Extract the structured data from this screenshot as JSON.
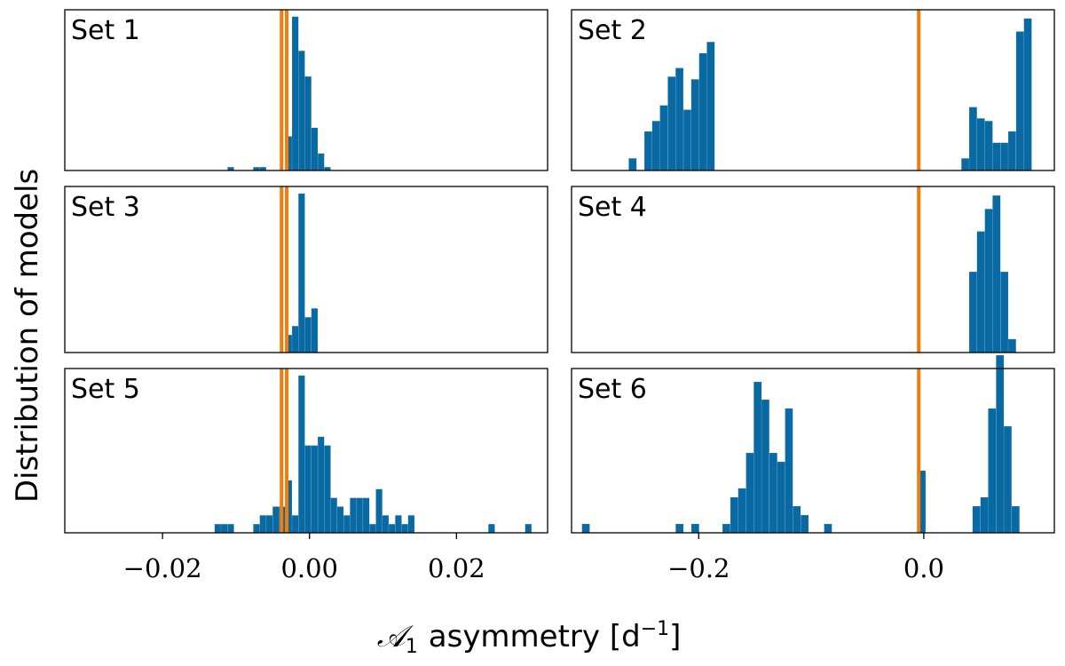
{
  "chart_data": {
    "type": "histogram",
    "ylabel": "Distribution of models",
    "xlabel_math": "𝒜",
    "xlabel_sub": "1",
    "xlabel_text": "asymmetry [d",
    "xlabel_sup": "−1",
    "xlabel_close": "]",
    "columns": [
      {
        "xlim": [
          -0.0333,
          0.0324
        ],
        "ticks": [
          -0.02,
          0.0,
          0.02
        ],
        "tick_labels": [
          "−0.02",
          "0.00",
          "0.02"
        ]
      },
      {
        "xlim": [
          -0.313,
          0.116
        ],
        "ticks": [
          -0.2,
          0.0
        ],
        "tick_labels": [
          "−0.2",
          "0.0"
        ]
      }
    ],
    "panels": [
      {
        "label": "Set 1",
        "column": 0,
        "bin_width": 0.000878,
        "ymax": 18.8,
        "ref_lines": [
          -0.0038,
          -0.0031
        ],
        "bins": [
          {
            "x": -0.01116,
            "h": 0.4
          },
          {
            "x": -0.00765,
            "h": 0.4
          },
          {
            "x": -0.00677,
            "h": 0.4
          },
          {
            "x": -0.00326,
            "h": 4
          },
          {
            "x": -0.00238,
            "h": 18
          },
          {
            "x": -0.00151,
            "h": 14
          },
          {
            "x": -0.00063,
            "h": 11
          },
          {
            "x": 0.00025,
            "h": 5
          },
          {
            "x": 0.00113,
            "h": 2
          },
          {
            "x": 0.002,
            "h": 0.4
          }
        ]
      },
      {
        "label": "Set 2",
        "column": 1,
        "bin_width": 0.00694,
        "ymax": 18.5,
        "ref_lines": [
          -0.0045
        ],
        "bins": [
          {
            "x": -0.2622,
            "h": 1.4
          },
          {
            "x": -0.2483,
            "h": 4.5
          },
          {
            "x": -0.2414,
            "h": 5.7
          },
          {
            "x": -0.2345,
            "h": 7.5
          },
          {
            "x": -0.2275,
            "h": 10.8
          },
          {
            "x": -0.2206,
            "h": 11.8
          },
          {
            "x": -0.2136,
            "h": 7
          },
          {
            "x": -0.2067,
            "h": 10.5
          },
          {
            "x": -0.1997,
            "h": 13.5
          },
          {
            "x": -0.1928,
            "h": 14.8
          },
          {
            "x": 0.0334,
            "h": 1.4
          },
          {
            "x": 0.0403,
            "h": 7.3
          },
          {
            "x": 0.0472,
            "h": 6
          },
          {
            "x": 0.0542,
            "h": 5.7
          },
          {
            "x": 0.0611,
            "h": 3.2
          },
          {
            "x": 0.0681,
            "h": 3.2
          },
          {
            "x": 0.075,
            "h": 4.5
          },
          {
            "x": 0.082,
            "h": 16
          },
          {
            "x": 0.0889,
            "h": 17.5
          }
        ]
      },
      {
        "label": "Set 3",
        "column": 0,
        "bin_width": 0.000878,
        "ymax": 18.8,
        "ref_lines": [
          -0.0038,
          -0.0031
        ],
        "bins": [
          {
            "x": -0.00326,
            "h": 2
          },
          {
            "x": -0.00238,
            "h": 3
          },
          {
            "x": -0.00151,
            "h": 18
          },
          {
            "x": -0.00063,
            "h": 4
          },
          {
            "x": 0.00025,
            "h": 5
          }
        ]
      },
      {
        "label": "Set 4",
        "column": 1,
        "bin_width": 0.00694,
        "ymax": 18.5,
        "ref_lines": [
          -0.0045
        ],
        "bins": [
          {
            "x": 0.0403,
            "h": 9
          },
          {
            "x": 0.0472,
            "h": 13.5
          },
          {
            "x": 0.0542,
            "h": 16
          },
          {
            "x": 0.0611,
            "h": 17.5
          },
          {
            "x": 0.0681,
            "h": 9
          },
          {
            "x": 0.075,
            "h": 1.5
          }
        ]
      },
      {
        "label": "Set 5",
        "column": 0,
        "bin_width": 0.000878,
        "ymax": 18.8,
        "ref_lines": [
          -0.0038,
          -0.0031
        ],
        "bins": [
          {
            "x": -0.01291,
            "h": 1
          },
          {
            "x": -0.01204,
            "h": 1
          },
          {
            "x": -0.01116,
            "h": 1
          },
          {
            "x": -0.00765,
            "h": 1
          },
          {
            "x": -0.00677,
            "h": 2
          },
          {
            "x": -0.00589,
            "h": 2
          },
          {
            "x": -0.00501,
            "h": 3
          },
          {
            "x": -0.00414,
            "h": 3
          },
          {
            "x": -0.00326,
            "h": 6
          },
          {
            "x": -0.00238,
            "h": 2
          },
          {
            "x": -0.00151,
            "h": 18
          },
          {
            "x": -0.00063,
            "h": 10
          },
          {
            "x": 0.00025,
            "h": 10
          },
          {
            "x": 0.00113,
            "h": 11
          },
          {
            "x": 0.002,
            "h": 10
          },
          {
            "x": 0.00288,
            "h": 4
          },
          {
            "x": 0.00376,
            "h": 3
          },
          {
            "x": 0.00464,
            "h": 2
          },
          {
            "x": 0.00551,
            "h": 4
          },
          {
            "x": 0.00639,
            "h": 4
          },
          {
            "x": 0.00727,
            "h": 4
          },
          {
            "x": 0.00815,
            "h": 1
          },
          {
            "x": 0.00903,
            "h": 5
          },
          {
            "x": 0.0099,
            "h": 2
          },
          {
            "x": 0.01078,
            "h": 1
          },
          {
            "x": 0.01166,
            "h": 2
          },
          {
            "x": 0.01254,
            "h": 1
          },
          {
            "x": 0.01341,
            "h": 2
          },
          {
            "x": 0.02434,
            "h": 1
          },
          {
            "x": 0.02934,
            "h": 1
          }
        ]
      },
      {
        "label": "Set 6",
        "column": 1,
        "bin_width": 0.00694,
        "ymax": 18.5,
        "ref_lines": [
          -0.0045
        ],
        "bins": [
          {
            "x": -0.3038,
            "h": 1
          },
          {
            "x": -0.2205,
            "h": 1
          },
          {
            "x": -0.2066,
            "h": 1
          },
          {
            "x": -0.1789,
            "h": 1
          },
          {
            "x": -0.1719,
            "h": 4
          },
          {
            "x": -0.165,
            "h": 5
          },
          {
            "x": -0.158,
            "h": 9
          },
          {
            "x": -0.1511,
            "h": 17
          },
          {
            "x": -0.1442,
            "h": 15
          },
          {
            "x": -0.1372,
            "h": 9
          },
          {
            "x": -0.1303,
            "h": 8
          },
          {
            "x": -0.1233,
            "h": 14
          },
          {
            "x": -0.1164,
            "h": 3
          },
          {
            "x": -0.1094,
            "h": 2
          },
          {
            "x": -0.0886,
            "h": 1
          },
          {
            "x": -0.0053,
            "h": 7
          },
          {
            "x": 0.0433,
            "h": 3
          },
          {
            "x": 0.0503,
            "h": 4
          },
          {
            "x": 0.0572,
            "h": 14
          },
          {
            "x": 0.0642,
            "h": 20
          },
          {
            "x": 0.0711,
            "h": 12
          },
          {
            "x": 0.0781,
            "h": 3
          }
        ]
      }
    ]
  },
  "colors": {
    "bars": "#0969a3",
    "ref_line": "#f27d0c"
  }
}
